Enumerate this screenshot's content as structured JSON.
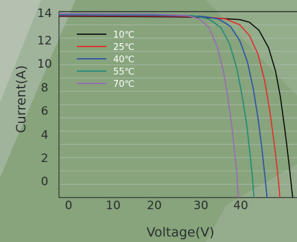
{
  "chart_data": {
    "type": "line",
    "title": "",
    "xlabel": "Voltage(V)",
    "ylabel": "Current(A)",
    "xlim": [
      0,
      50
    ],
    "ylim": [
      0,
      14
    ],
    "x_ticks": [
      "0",
      "10",
      "20",
      "30",
      "40"
    ],
    "y_ticks": [
      "0",
      "2",
      "4",
      "6",
      "8",
      "10",
      "12",
      "14"
    ],
    "grid": "horizontal",
    "legend_position": "top-left",
    "series": [
      {
        "name": "10℃",
        "color": "#0b0b0b",
        "points": [
          [
            0,
            13.65
          ],
          [
            20,
            13.62
          ],
          [
            30,
            13.58
          ],
          [
            38,
            13.4
          ],
          [
            40,
            13.2
          ],
          [
            42,
            12.6
          ],
          [
            44,
            11.3
          ],
          [
            45.5,
            9.5
          ],
          [
            46.5,
            7.6
          ],
          [
            47.5,
            5.0
          ],
          [
            48.3,
            2.6
          ],
          [
            48.9,
            0.6
          ],
          [
            49.1,
            0
          ]
        ]
      },
      {
        "name": "25℃",
        "color": "#e8282a",
        "points": [
          [
            0,
            13.7
          ],
          [
            20,
            13.67
          ],
          [
            30,
            13.62
          ],
          [
            35,
            13.45
          ],
          [
            38,
            13.0
          ],
          [
            40,
            12.2
          ],
          [
            41.8,
            10.8
          ],
          [
            43.2,
            8.8
          ],
          [
            44.3,
            6.5
          ],
          [
            45.2,
            4.1
          ],
          [
            45.9,
            2.0
          ],
          [
            46.3,
            0.5
          ],
          [
            46.4,
            0
          ]
        ]
      },
      {
        "name": "40℃",
        "color": "#2a4faa",
        "points": [
          [
            0,
            13.75
          ],
          [
            20,
            13.72
          ],
          [
            30,
            13.65
          ],
          [
            33.5,
            13.45
          ],
          [
            36,
            12.9
          ],
          [
            38,
            11.8
          ],
          [
            39.6,
            10.2
          ],
          [
            40.8,
            8.2
          ],
          [
            41.8,
            6.0
          ],
          [
            42.6,
            3.8
          ],
          [
            43.2,
            1.8
          ],
          [
            43.6,
            0.4
          ],
          [
            43.7,
            0
          ]
        ]
      },
      {
        "name": "55℃",
        "color": "#1f8a7a",
        "points": [
          [
            0,
            13.8
          ],
          [
            20,
            13.77
          ],
          [
            28,
            13.7
          ],
          [
            31.5,
            13.45
          ],
          [
            34,
            12.8
          ],
          [
            35.8,
            11.6
          ],
          [
            37.3,
            9.8
          ],
          [
            38.4,
            7.8
          ],
          [
            39.4,
            5.6
          ],
          [
            40.1,
            3.4
          ],
          [
            40.6,
            1.6
          ],
          [
            40.9,
            0.3
          ],
          [
            41,
            0
          ]
        ]
      },
      {
        "name": "70℃",
        "color": "#9b68b5",
        "points": [
          [
            0,
            13.85
          ],
          [
            20,
            13.82
          ],
          [
            27,
            13.7
          ],
          [
            29.5,
            13.45
          ],
          [
            31.5,
            12.8
          ],
          [
            33.2,
            11.4
          ],
          [
            34.5,
            9.6
          ],
          [
            35.5,
            7.5
          ],
          [
            36.3,
            5.4
          ],
          [
            36.9,
            3.4
          ],
          [
            37.4,
            1.6
          ],
          [
            37.6,
            0.3
          ],
          [
            37.7,
            0
          ]
        ]
      }
    ]
  }
}
